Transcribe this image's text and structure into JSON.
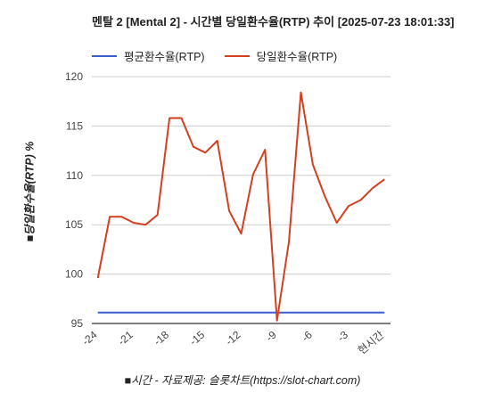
{
  "header": {
    "title": "멘탈 2 [Mental 2] - 시간별 당일환수율(RTP) 추이 [2025-07-23 18:01:33]"
  },
  "axes": {
    "ylabel": "■당일환수율(RTP) %",
    "xlabel": "■시간 - 자료제공: 슬롯차트(https://slot-chart.com)"
  },
  "colors": {
    "avg": "#3a5fcd",
    "daily": "#d2401f",
    "grid": "#cccccc",
    "axis": "#333333"
  },
  "chart_data": {
    "type": "line",
    "ylim": [
      95,
      120
    ],
    "y_ticks": [
      95,
      100,
      105,
      110,
      115,
      120
    ],
    "x_tick_labels": [
      "-24",
      "-21",
      "-18",
      "-15",
      "-12",
      "-9",
      "-6",
      "-3",
      "현시간"
    ],
    "x_tick_positions": [
      -24,
      -21,
      -18,
      -15,
      -12,
      -9,
      -6,
      -3,
      0
    ],
    "x": [
      -24,
      -23,
      -22,
      -21,
      -20,
      -19,
      -18,
      -17,
      -16,
      -15,
      -14,
      -13,
      -12,
      -11,
      -10,
      -9,
      -8,
      -7,
      -6,
      -5,
      -4,
      -3,
      -2,
      -1,
      0
    ],
    "series": [
      {
        "name": "평균환수율(RTP)",
        "color": "#3a5fcd",
        "values": [
          96.1,
          96.1,
          96.1,
          96.1,
          96.1,
          96.1,
          96.1,
          96.1,
          96.1,
          96.1,
          96.1,
          96.1,
          96.1,
          96.1,
          96.1,
          96.1,
          96.1,
          96.1,
          96.1,
          96.1,
          96.1,
          96.1,
          96.1,
          96.1,
          96.1
        ]
      },
      {
        "name": "당일환수율(RTP)",
        "color": "#d2401f",
        "values": [
          99.6,
          105.8,
          105.8,
          105.2,
          105.0,
          106.0,
          115.8,
          115.8,
          112.9,
          112.3,
          113.5,
          106.4,
          104.1,
          110.1,
          112.6,
          95.3,
          103.3,
          118.4,
          111.1,
          107.9,
          105.2,
          106.9,
          107.5,
          108.7,
          109.6
        ]
      }
    ],
    "grid": true,
    "legend_position": "top"
  }
}
